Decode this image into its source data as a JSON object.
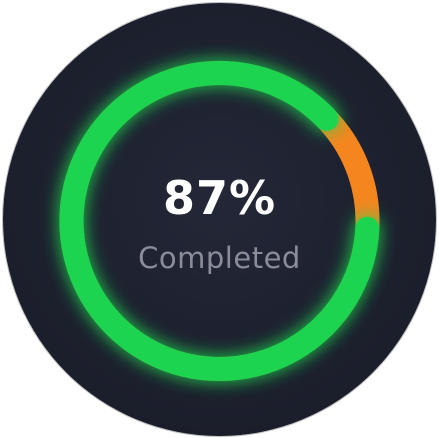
{
  "progress": {
    "value": 0.87,
    "percent_text": "87%",
    "status_label": "Completed",
    "colors": {
      "complete": "#1ed44f",
      "remaining": "#f5861f",
      "background": "#1b1e2b",
      "percent_text": "#ffffff",
      "label_text": "#8a8d99"
    }
  }
}
